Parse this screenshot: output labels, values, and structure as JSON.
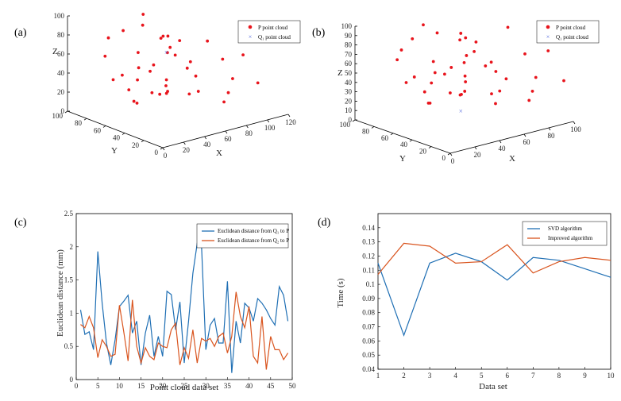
{
  "chart_data": [
    {
      "id": "a",
      "type": "scatter",
      "panel_label": "(a)",
      "xlabel": "X",
      "ylabel": "Y",
      "zlabel": "Z",
      "x_ticks": [
        "0",
        "20",
        "40",
        "60",
        "80",
        "100",
        "120"
      ],
      "y_ticks": [
        "0",
        "20",
        "40",
        "60",
        "80",
        "100"
      ],
      "z_ticks": [
        "0",
        "20",
        "40",
        "60",
        "80",
        "100"
      ],
      "legend": [
        "P point cloud",
        "Q₁ point cloud"
      ],
      "series": [
        {
          "name": "P point cloud",
          "marker": "dot",
          "color": "#e8141c",
          "points": [
            [
              45,
              70,
              100
            ],
            [
              70,
              30,
              80
            ],
            [
              55,
              60,
              78
            ],
            [
              35,
              80,
              82
            ],
            [
              62,
              55,
              58
            ],
            [
              48,
              45,
              74
            ],
            [
              40,
              65,
              92
            ],
            [
              80,
              25,
              60
            ],
            [
              30,
              90,
              72
            ],
            [
              58,
              38,
              52
            ],
            [
              42,
              72,
              60
            ],
            [
              50,
              50,
              66
            ],
            [
              68,
              40,
              40
            ],
            [
              25,
              88,
              55
            ],
            [
              55,
              70,
              44
            ],
            [
              38,
              55,
              48
            ],
            [
              60,
              62,
              30
            ],
            [
              72,
              50,
              50
            ],
            [
              48,
              78,
              40
            ],
            [
              85,
              20,
              40
            ],
            [
              95,
              20,
              62
            ],
            [
              65,
              68,
              20
            ],
            [
              40,
              40,
              30
            ],
            [
              52,
              52,
              24
            ],
            [
              35,
              65,
              36
            ],
            [
              30,
              85,
              30
            ],
            [
              75,
              45,
              20
            ],
            [
              58,
              75,
              12
            ],
            [
              90,
              30,
              20
            ],
            [
              100,
              10,
              35
            ],
            [
              45,
              85,
              15
            ],
            [
              70,
              80,
              5
            ],
            [
              30,
              60,
              15
            ],
            [
              55,
              55,
              80
            ],
            [
              62,
              70,
              70
            ],
            [
              48,
              35,
              85
            ],
            [
              80,
              60,
              10
            ],
            [
              38,
              72,
              10
            ],
            [
              25,
              70,
              42
            ],
            [
              95,
              40,
              5
            ]
          ]
        },
        {
          "name": "Q₁ point cloud",
          "marker": "x",
          "color": "#5b6fe0",
          "points": [
            [
              58,
              60,
              60
            ]
          ]
        }
      ]
    },
    {
      "id": "b",
      "type": "scatter",
      "panel_label": "(b)",
      "xlabel": "X",
      "ylabel": "Y",
      "zlabel": "Z",
      "x_ticks": [
        "0",
        "20",
        "40",
        "60",
        "80",
        "100"
      ],
      "y_ticks": [
        "0",
        "20",
        "40",
        "60",
        "80",
        "100"
      ],
      "z_ticks": [
        "0",
        "10",
        "20",
        "30",
        "40",
        "50",
        "60",
        "70",
        "80",
        "90",
        "100"
      ],
      "legend": [
        "P point cloud",
        "Q₁ point cloud"
      ],
      "series": [
        {
          "name": "P point cloud",
          "marker": "dot",
          "color": "#e8141c",
          "points": [
            [
              40,
              80,
              95
            ],
            [
              70,
              30,
              100
            ],
            [
              55,
              60,
              88
            ],
            [
              35,
              85,
              80
            ],
            [
              62,
              55,
              68
            ],
            [
              48,
              45,
              72
            ],
            [
              42,
              68,
              90
            ],
            [
              80,
              25,
              70
            ],
            [
              30,
              90,
              68
            ],
            [
              58,
              38,
              60
            ],
            [
              42,
              72,
              58
            ],
            [
              50,
              50,
              62
            ],
            [
              68,
              40,
              50
            ],
            [
              25,
              88,
              60
            ],
            [
              55,
              70,
              48
            ],
            [
              38,
              55,
              52
            ],
            [
              60,
              62,
              40
            ],
            [
              72,
              50,
              55
            ],
            [
              48,
              78,
              42
            ],
            [
              85,
              20,
              45
            ],
            [
              95,
              20,
              70
            ],
            [
              65,
              68,
              30
            ],
            [
              40,
              40,
              35
            ],
            [
              52,
              52,
              30
            ],
            [
              35,
              65,
              40
            ],
            [
              30,
              85,
              35
            ],
            [
              75,
              45,
              25
            ],
            [
              58,
              75,
              18
            ],
            [
              90,
              30,
              25
            ],
            [
              100,
              10,
              40
            ],
            [
              45,
              85,
              20
            ],
            [
              70,
              80,
              10
            ],
            [
              30,
              60,
              22
            ],
            [
              55,
              55,
              85
            ],
            [
              62,
              70,
              75
            ],
            [
              48,
              35,
              90
            ],
            [
              80,
              60,
              15
            ],
            [
              38,
              72,
              15
            ],
            [
              25,
              70,
              48
            ],
            [
              95,
              40,
              10
            ],
            [
              60,
              30,
              22
            ],
            [
              88,
              55,
              30
            ]
          ]
        },
        {
          "name": "Q₁ point cloud",
          "marker": "x",
          "color": "#5b6fe0",
          "points": [
            [
              55,
              60,
              5
            ]
          ]
        }
      ]
    },
    {
      "id": "c",
      "type": "line",
      "panel_label": "(c)",
      "xlabel": "Point cloud data set",
      "ylabel": "Euclidean distance (mm)",
      "xlim": [
        0,
        50
      ],
      "ylim": [
        0,
        2.5
      ],
      "x_ticks": [
        "0",
        "5",
        "10",
        "15",
        "20",
        "25",
        "30",
        "35",
        "40",
        "45",
        "50"
      ],
      "y_ticks": [
        "0",
        "0.5",
        "1",
        "1.5",
        "2",
        "2.5"
      ],
      "series": [
        {
          "name": "Euclidean distance from Q₁ to P",
          "color": "#1f6fb4",
          "x": [
            1,
            2,
            3,
            4,
            5,
            6,
            7,
            8,
            9,
            10,
            11,
            12,
            13,
            14,
            15,
            16,
            17,
            18,
            19,
            20,
            21,
            22,
            23,
            24,
            25,
            26,
            27,
            28,
            29,
            30,
            31,
            32,
            33,
            34,
            35,
            36,
            37,
            38,
            39,
            40,
            41,
            42,
            43,
            44,
            45,
            46,
            47,
            48,
            49
          ],
          "values": [
            1.05,
            0.68,
            0.72,
            0.45,
            1.93,
            1.15,
            0.55,
            0.22,
            0.6,
            1.1,
            1.18,
            1.27,
            0.7,
            0.88,
            0.22,
            0.7,
            0.97,
            0.35,
            0.65,
            0.35,
            1.33,
            1.28,
            0.75,
            1.17,
            0.25,
            0.88,
            1.6,
            2.05,
            2.02,
            0.45,
            0.82,
            0.92,
            0.55,
            0.55,
            1.48,
            0.1,
            0.88,
            0.55,
            1.15,
            1.08,
            0.88,
            1.22,
            1.15,
            1.05,
            0.92,
            0.82,
            1.4,
            1.27,
            0.88
          ]
        },
        {
          "name": "Euclidean distance from Q₂ to P",
          "color": "#d9541e",
          "x": [
            1,
            2,
            3,
            4,
            5,
            6,
            7,
            8,
            9,
            10,
            11,
            12,
            13,
            14,
            15,
            16,
            17,
            18,
            19,
            20,
            21,
            22,
            23,
            24,
            25,
            26,
            27,
            28,
            29,
            30,
            31,
            32,
            33,
            34,
            35,
            36,
            37,
            38,
            39,
            40,
            41,
            42,
            43,
            44,
            45,
            46,
            47,
            48,
            49
          ],
          "values": [
            0.83,
            0.78,
            0.95,
            0.78,
            0.33,
            0.6,
            0.5,
            0.35,
            0.38,
            1.12,
            0.72,
            0.28,
            1.2,
            0.5,
            0.25,
            0.48,
            0.35,
            0.3,
            0.55,
            0.5,
            0.48,
            0.75,
            0.85,
            0.22,
            0.48,
            0.32,
            0.75,
            0.25,
            0.62,
            0.58,
            0.62,
            0.5,
            0.65,
            0.7,
            0.4,
            0.65,
            1.32,
            0.95,
            0.78,
            1.1,
            0.35,
            0.25,
            0.95,
            0.15,
            0.65,
            0.45,
            0.45,
            0.3,
            0.4
          ]
        }
      ]
    },
    {
      "id": "d",
      "type": "line",
      "panel_label": "(d)",
      "xlabel": "Data set",
      "ylabel": "Time (s)",
      "xlim": [
        1,
        10
      ],
      "ylim": [
        0.04,
        0.15
      ],
      "x_ticks": [
        "1",
        "2",
        "3",
        "4",
        "5",
        "6",
        "7",
        "8",
        "9",
        "10"
      ],
      "y_ticks": [
        "0.04",
        "0.05",
        "0.06",
        "0.07",
        "0.08",
        "0.09",
        "0.1",
        "0.11",
        "0.12",
        "0.13",
        "0.14"
      ],
      "series": [
        {
          "name": "SVD algorithm",
          "color": "#1f6fb4",
          "x": [
            1,
            2,
            3,
            4,
            5,
            6,
            7,
            8,
            9,
            10
          ],
          "values": [
            0.115,
            0.064,
            0.115,
            0.122,
            0.116,
            0.103,
            0.119,
            0.117,
            0.111,
            0.105
          ]
        },
        {
          "name": "Improved algorithm",
          "color": "#d9541e",
          "x": [
            1,
            2,
            3,
            4,
            5,
            6,
            7,
            8,
            9,
            10
          ],
          "values": [
            0.107,
            0.129,
            0.127,
            0.115,
            0.116,
            0.128,
            0.108,
            0.116,
            0.119,
            0.117
          ]
        }
      ]
    }
  ]
}
